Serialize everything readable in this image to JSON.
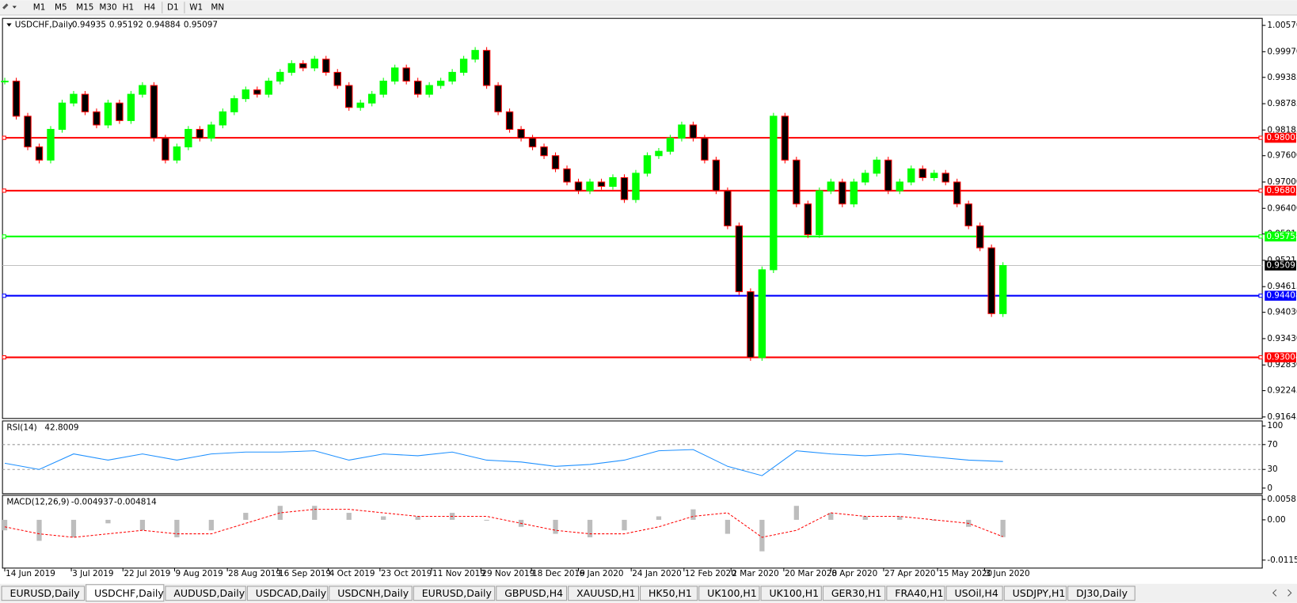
{
  "toolbar": {
    "timeframes": [
      "M1",
      "M5",
      "M15",
      "M30",
      "H1",
      "H4",
      "D1",
      "W1",
      "MN"
    ]
  },
  "chart_data": {
    "type": "candlestick",
    "symbol": "USDCHF,Daily",
    "ohlc": [
      0.94935,
      0.95192,
      0.94884,
      0.95097
    ],
    "up_color": "#00ff00",
    "down_color": "#ff0000",
    "closes": [
      0.993,
      0.985,
      0.978,
      0.975,
      0.982,
      0.988,
      0.99,
      0.986,
      0.983,
      0.988,
      0.984,
      0.99,
      0.992,
      0.98,
      0.975,
      0.978,
      0.982,
      0.98,
      0.983,
      0.986,
      0.989,
      0.991,
      0.99,
      0.993,
      0.995,
      0.997,
      0.996,
      0.998,
      0.995,
      0.992,
      0.987,
      0.988,
      0.99,
      0.993,
      0.996,
      0.993,
      0.99,
      0.992,
      0.993,
      0.995,
      0.998,
      1.0,
      0.992,
      0.986,
      0.982,
      0.98,
      0.978,
      0.976,
      0.973,
      0.97,
      0.968,
      0.97,
      0.969,
      0.971,
      0.966,
      0.972,
      0.976,
      0.977,
      0.98,
      0.983,
      0.98,
      0.975,
      0.968,
      0.96,
      0.945,
      0.93,
      0.95,
      0.985,
      0.975,
      0.965,
      0.958,
      0.968,
      0.97,
      0.965,
      0.97,
      0.972,
      0.975,
      0.968,
      0.97,
      0.973,
      0.971,
      0.972,
      0.97,
      0.965,
      0.96,
      0.955,
      0.94,
      0.95097
    ],
    "xlim": [
      -0.2,
      109.6
    ],
    "xticks": [
      {
        "value": 0,
        "label": "14 Jun 2019"
      },
      {
        "value": 5.8,
        "label": "3 Jul 2019"
      },
      {
        "value": 10.3,
        "label": "22 Jul 2019"
      },
      {
        "value": 14.8,
        "label": "9 Aug 2019"
      },
      {
        "value": 19.4,
        "label": "28 Aug 2019"
      },
      {
        "value": 23.8,
        "label": "16 Sep 2019"
      },
      {
        "value": 28.2,
        "label": "4 Oct 2019"
      },
      {
        "value": 32.7,
        "label": "23 Oct 2019"
      },
      {
        "value": 37.2,
        "label": "11 Nov 2019"
      },
      {
        "value": 41.5,
        "label": "29 Nov 2019"
      },
      {
        "value": 45.9,
        "label": "18 Dec 2019"
      },
      {
        "value": 50.0,
        "label": "6 Jan 2020"
      },
      {
        "value": 54.6,
        "label": "24 Jan 2020"
      },
      {
        "value": 59.2,
        "label": "12 Feb 2020"
      },
      {
        "value": 63.3,
        "label": "2 Mar 2020"
      },
      {
        "value": 67.9,
        "label": "20 Mar 2020"
      },
      {
        "value": 72.0,
        "label": "8 Apr 2020"
      },
      {
        "value": 76.6,
        "label": "27 Apr 2020"
      },
      {
        "value": 81.3,
        "label": "15 May 2020"
      },
      {
        "value": 85.4,
        "label": "3 Jun 2020"
      }
    ],
    "ylim": [
      0.9161,
      1.0073
    ],
    "yticks": [
      {
        "value": 1.0057,
        "label": "1.00570"
      },
      {
        "value": 0.9997,
        "label": "0.99970"
      },
      0.99385,
      0.98785,
      0.98185,
      {
        "value": 0.976,
        "label": "0.97600"
      },
      {
        "value": 0.97,
        "label": "0.97000"
      },
      {
        "value": 0.964,
        "label": "0.96400"
      },
      0.95815,
      0.95215,
      0.94615,
      {
        "value": 0.9403,
        "label": "0.94030"
      },
      {
        "value": 0.9343,
        "label": "0.93430"
      },
      {
        "value": 0.9283,
        "label": "0.92830"
      },
      0.92245,
      0.91645
    ],
    "levels": [
      {
        "value": 0.98008,
        "color": "#ff0000"
      },
      {
        "value": 0.96803,
        "color": "#ff0000"
      },
      {
        "value": 0.95758,
        "color": "#00ff00"
      },
      {
        "value": 0.94408,
        "color": "#0000ff"
      },
      {
        "value": 0.93004,
        "color": "#ff0000"
      }
    ],
    "current": 0.95097
  },
  "rsi": {
    "title": "RSI(14)",
    "current": 42.8009,
    "color": "#1e90ff",
    "x": [
      0,
      3,
      6,
      9,
      12,
      15,
      18,
      21,
      24,
      27,
      30,
      33,
      36,
      39,
      42,
      45,
      48,
      51,
      54,
      57,
      60,
      63,
      66,
      69,
      72,
      75,
      78,
      81,
      84,
      87
    ],
    "values": [
      40,
      30,
      55,
      45,
      55,
      45,
      55,
      58,
      58,
      60,
      45,
      55,
      52,
      58,
      45,
      42,
      35,
      38,
      45,
      60,
      62,
      35,
      20,
      60,
      55,
      52,
      55,
      50,
      45,
      42.8
    ],
    "ylim": [
      -9,
      108
    ],
    "yticks": [
      100,
      70,
      30,
      0
    ],
    "levels": [
      70,
      30
    ]
  },
  "macd": {
    "title": "MACD(12,26,9)",
    "main": -0.004937,
    "signal": -0.004814,
    "x": [
      0,
      3,
      6,
      9,
      12,
      15,
      18,
      21,
      24,
      27,
      30,
      33,
      36,
      39,
      42,
      45,
      48,
      51,
      54,
      57,
      60,
      63,
      66,
      69,
      72,
      75,
      78,
      81,
      84,
      87
    ],
    "histogram": [
      -0.003,
      -0.006,
      -0.005,
      -0.001,
      -0.003,
      -0.005,
      -0.003,
      0.002,
      0.004,
      0.004,
      0.002,
      0.001,
      0.001,
      0.002,
      0.0,
      -0.002,
      -0.004,
      -0.005,
      -0.003,
      0.001,
      0.003,
      -0.004,
      -0.009,
      0.004,
      0.002,
      0.001,
      0.001,
      0.0,
      -0.002,
      -0.004937
    ],
    "signal_values": [
      -0.002,
      -0.004,
      -0.005,
      -0.004,
      -0.003,
      -0.004,
      -0.004,
      -0.001,
      0.002,
      0.003,
      0.003,
      0.002,
      0.001,
      0.001,
      0.001,
      -0.001,
      -0.003,
      -0.004,
      -0.004,
      -0.002,
      0.001,
      0.002,
      -0.005,
      -0.003,
      0.002,
      0.001,
      0.001,
      0.0,
      -0.001,
      -0.004814
    ],
    "ylim": [
      -0.0138,
      0.007
    ],
    "yticks": [
      0.005818,
      {
        "value": 0,
        "label": "0.00"
      },
      -0.011515
    ]
  },
  "tabs": [
    "EURUSD,Daily",
    "USDCHF,Daily",
    "AUDUSD,Daily",
    "USDCAD,Daily",
    "USDCNH,Daily",
    "EURUSD,Daily",
    "GBPUSD,H4",
    "XAUUSD,H1",
    "HK50,H1",
    "UK100,H1",
    "UK100,H1",
    "GER30,H1",
    "FRA40,H1",
    "USOil,H4",
    "USDJPY,H1",
    "DJ30,Daily"
  ]
}
